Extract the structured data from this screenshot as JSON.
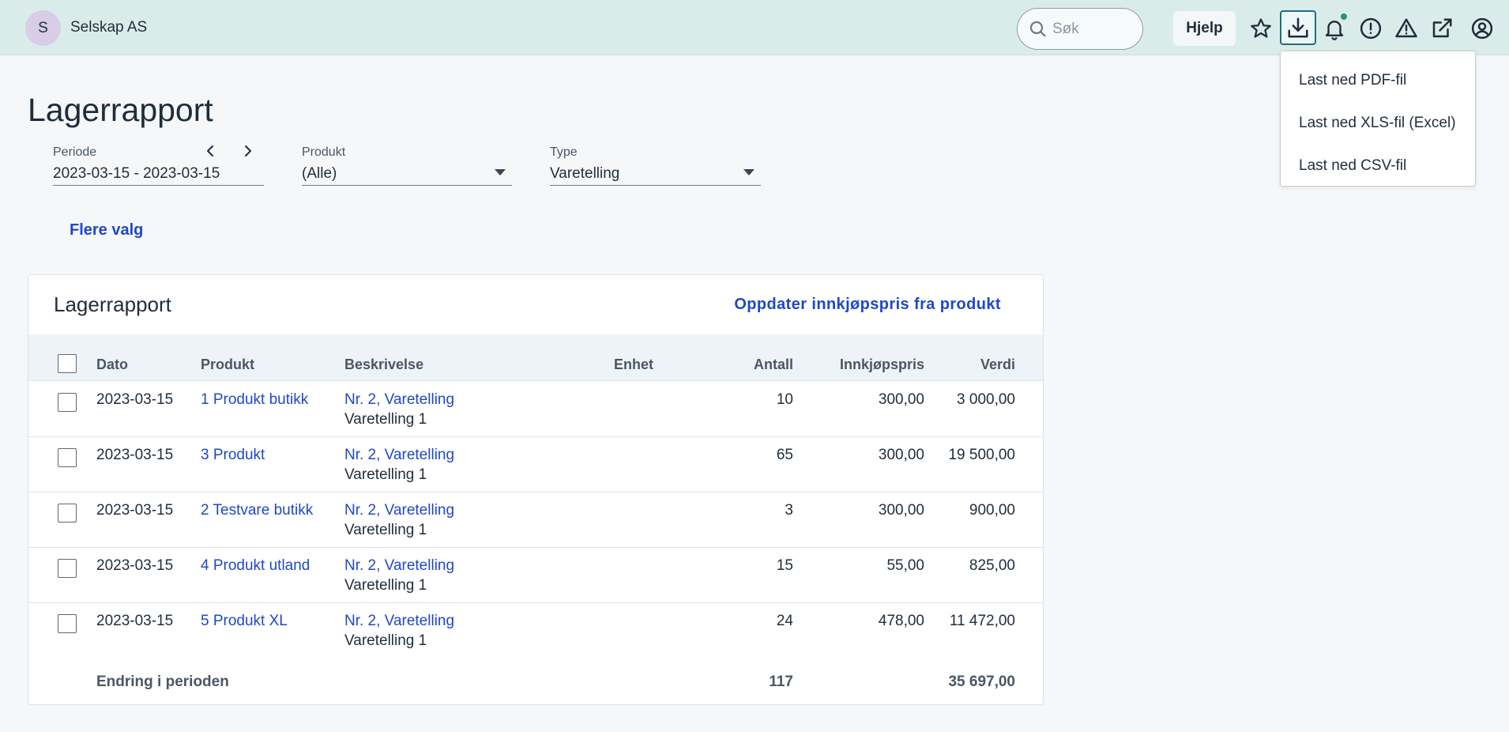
{
  "header": {
    "avatar_letter": "S",
    "company": "Selskap AS",
    "search_placeholder": "Søk",
    "help_label": "Hjelp"
  },
  "download_menu": {
    "items": [
      "Last ned PDF-fil",
      "Last ned XLS-fil (Excel)",
      "Last ned CSV-fil"
    ]
  },
  "page": {
    "title": "Lagerrapport",
    "more_options": "Flere valg"
  },
  "filters": {
    "period": {
      "label": "Periode",
      "value": "2023-03-15 - 2023-03-15"
    },
    "product": {
      "label": "Produkt",
      "value": "(Alle)"
    },
    "type": {
      "label": "Type",
      "value": "Varetelling"
    }
  },
  "card": {
    "title": "Lagerrapport",
    "action": "Oppdater innkjøpspris fra produkt"
  },
  "table": {
    "columns": [
      "Dato",
      "Produkt",
      "Beskrivelse",
      "Enhet",
      "Antall",
      "Innkjøpspris",
      "Verdi"
    ],
    "rows": [
      {
        "date": "2023-03-15",
        "product": "1 Produkt butikk",
        "desc_link": "Nr. 2, Varetelling",
        "desc_text": "Varetelling 1",
        "unit": "",
        "qty": "10",
        "price": "300,00",
        "value": "3 000,00"
      },
      {
        "date": "2023-03-15",
        "product": "3 Produkt",
        "desc_link": "Nr. 2, Varetelling",
        "desc_text": "Varetelling 1",
        "unit": "",
        "qty": "65",
        "price": "300,00",
        "value": "19 500,00"
      },
      {
        "date": "2023-03-15",
        "product": "2 Testvare butikk",
        "desc_link": "Nr. 2, Varetelling",
        "desc_text": "Varetelling 1",
        "unit": "",
        "qty": "3",
        "price": "300,00",
        "value": "900,00"
      },
      {
        "date": "2023-03-15",
        "product": "4 Produkt utland",
        "desc_link": "Nr. 2, Varetelling",
        "desc_text": "Varetelling 1",
        "unit": "",
        "qty": "15",
        "price": "55,00",
        "value": "825,00"
      },
      {
        "date": "2023-03-15",
        "product": "5 Produkt XL",
        "desc_link": "Nr. 2, Varetelling",
        "desc_text": "Varetelling 1",
        "unit": "",
        "qty": "24",
        "price": "478,00",
        "value": "11 472,00"
      }
    ],
    "footer": {
      "label": "Endring i perioden",
      "qty": "117",
      "value": "35 697,00"
    }
  },
  "colors": {
    "header_bg": "#daecea",
    "link": "#1f48c8",
    "accent": "#1d6f7c",
    "notification": "#2a8f86"
  },
  "icons": [
    "search-icon",
    "star-icon",
    "download-icon",
    "bell-icon",
    "alert-circle-icon",
    "warning-icon",
    "external-link-icon",
    "user-circle-icon",
    "chevron-left-icon",
    "chevron-right-icon",
    "caret-down-icon"
  ]
}
